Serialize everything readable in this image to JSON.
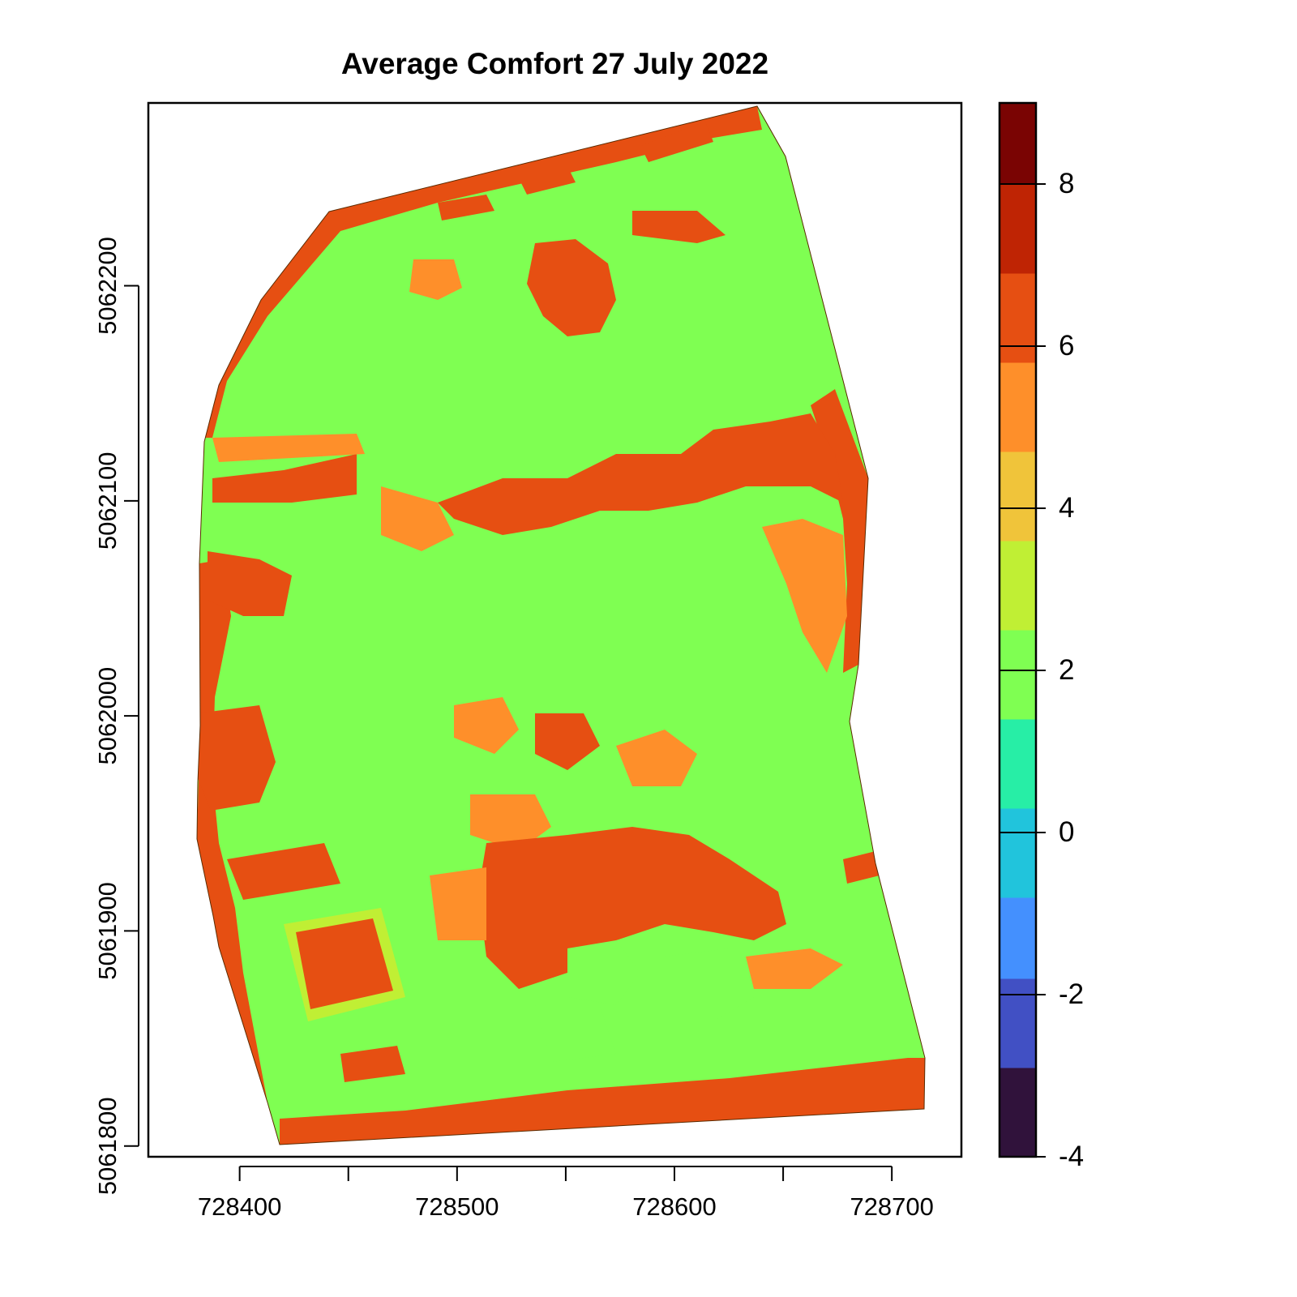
{
  "title": "Average Comfort 27 July 2022",
  "x_axis": {
    "ticks": [
      728400,
      728450,
      728500,
      728550,
      728600,
      728650,
      728700
    ],
    "labels": [
      "728400",
      "728500",
      "728600",
      "728700"
    ],
    "labeled_values": [
      728400,
      728500,
      728600,
      728700
    ],
    "range": [
      728358,
      728732
    ]
  },
  "y_axis": {
    "labels": [
      "5062200",
      "5062100",
      "5062000",
      "5061900",
      "5061800"
    ],
    "values": [
      5062200,
      5062100,
      5062000,
      5061900,
      5061800
    ],
    "range": [
      5061795,
      5062285
    ]
  },
  "colorbar": {
    "range": [
      -4,
      9
    ],
    "tick_labels": [
      "8",
      "6",
      "4",
      "2",
      "0",
      "-2",
      "-4"
    ],
    "tick_values": [
      8,
      6,
      4,
      2,
      0,
      -2,
      -4
    ],
    "bins": [
      {
        "from": -4.0,
        "to": -2.9,
        "color": "#30123b"
      },
      {
        "from": -2.9,
        "to": -1.8,
        "color": "#4150c4"
      },
      {
        "from": -1.8,
        "to": -0.8,
        "color": "#4490fe"
      },
      {
        "from": -0.8,
        "to": 0.3,
        "color": "#21c4dc"
      },
      {
        "from": 0.3,
        "to": 1.4,
        "color": "#27eea6"
      },
      {
        "from": 1.4,
        "to": 2.5,
        "color": "#7fff52"
      },
      {
        "from": 2.5,
        "to": 3.6,
        "color": "#c0ef34"
      },
      {
        "from": 3.6,
        "to": 4.7,
        "color": "#f0c43a"
      },
      {
        "from": 4.7,
        "to": 5.8,
        "color": "#fe8f2a"
      },
      {
        "from": 5.8,
        "to": 6.9,
        "color": "#e64f12"
      },
      {
        "from": 6.9,
        "to": 8.0,
        "color": "#bf2404"
      },
      {
        "from": 8.0,
        "to": 9.0,
        "color": "#7a0403"
      }
    ]
  },
  "colors": {
    "comfort_green": "#7fff52",
    "comfort_orange": "#fe8f2a",
    "comfort_red": "#e64f12",
    "comfort_yellow": "#c0ef34"
  }
}
